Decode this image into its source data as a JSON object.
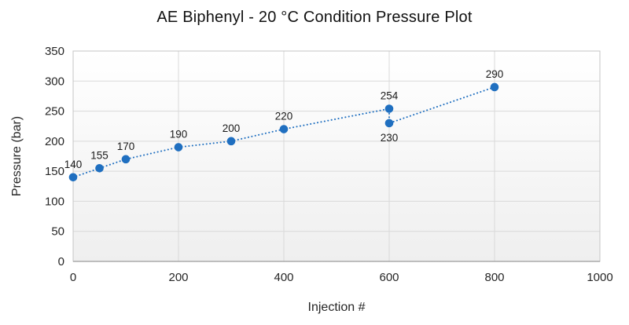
{
  "chart_data": {
    "type": "scatter",
    "title": "AE Biphenyl - 20 °C Condition Pressure Plot",
    "xlabel": "Injection #",
    "ylabel": "Pressure (bar)",
    "xlim": [
      0,
      1000
    ],
    "ylim": [
      0,
      350
    ],
    "x_ticks": [
      0,
      200,
      400,
      600,
      800,
      1000
    ],
    "y_ticks": [
      0,
      50,
      100,
      150,
      200,
      250,
      300,
      350
    ],
    "grid": true,
    "legend": "none",
    "line_style": "dotted",
    "series": [
      {
        "name": "Pressure",
        "marker_color": "#1F6FC0",
        "line_color": "#1F6FC0",
        "points": [
          {
            "x": 0,
            "y": 140,
            "label": "140",
            "label_pos": "above"
          },
          {
            "x": 50,
            "y": 155,
            "label": "155",
            "label_pos": "above"
          },
          {
            "x": 100,
            "y": 170,
            "label": "170",
            "label_pos": "above"
          },
          {
            "x": 200,
            "y": 190,
            "label": "190",
            "label_pos": "above"
          },
          {
            "x": 300,
            "y": 200,
            "label": "200",
            "label_pos": "above"
          },
          {
            "x": 400,
            "y": 220,
            "label": "220",
            "label_pos": "above"
          },
          {
            "x": 600,
            "y": 254,
            "label": "254",
            "label_pos": "above"
          },
          {
            "x": 600,
            "y": 230,
            "label": "230",
            "label_pos": "below"
          },
          {
            "x": 800,
            "y": 290,
            "label": "290",
            "label_pos": "above"
          }
        ]
      }
    ],
    "colors": {
      "plot_bg_top": "#ffffff",
      "plot_bg_bottom": "#efefef",
      "gridline": "#d9d9d9",
      "plot_border": "#c4c4c4",
      "axis_line": "#9b9b9b",
      "text": "#262626"
    }
  }
}
